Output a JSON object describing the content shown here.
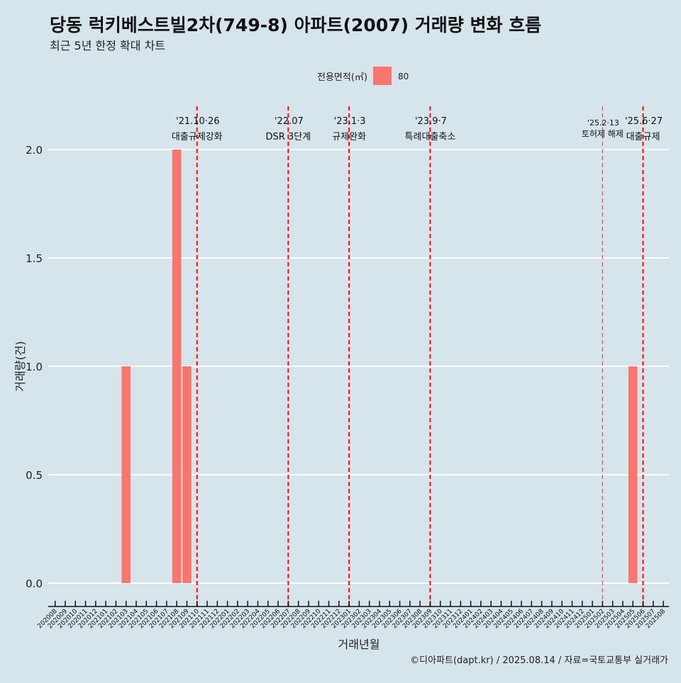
{
  "chart_data": {
    "type": "bar",
    "title": "당동 럭키베스트빌2차(749-8) 아파트(2007) 거래량 변화 흐름",
    "subtitle": "최근 5년 한정 확대 차트",
    "xlabel": "거래년월",
    "ylabel": "거래량(건)",
    "ylim": [
      0,
      2.0
    ],
    "yticks": [
      "0.0",
      "0.5",
      "1.0",
      "1.5",
      "2.0"
    ],
    "ytick_values": [
      0,
      0.5,
      1.0,
      1.5,
      2.0
    ],
    "legend": {
      "title": "전용면적(㎡)",
      "entries": [
        "80"
      ],
      "colors": [
        "#f8766d"
      ],
      "placement": "top"
    },
    "categories": [
      "202008",
      "202009",
      "202010",
      "202011",
      "202012",
      "202101",
      "202102",
      "202103",
      "202104",
      "202105",
      "202106",
      "202107",
      "202108",
      "202109",
      "202110",
      "202111",
      "202112",
      "202201",
      "202202",
      "202203",
      "202204",
      "202205",
      "202206",
      "202207",
      "202208",
      "202209",
      "202210",
      "202211",
      "202212",
      "202301",
      "202302",
      "202303",
      "202304",
      "202305",
      "202306",
      "202307",
      "202308",
      "202309",
      "202310",
      "202311",
      "202312",
      "202401",
      "202402",
      "202403",
      "202404",
      "202405",
      "202406",
      "202407",
      "202408",
      "202409",
      "202410",
      "202411",
      "202412",
      "202501",
      "202502",
      "202503",
      "202504",
      "202505",
      "202506",
      "202507",
      "202508"
    ],
    "series": [
      {
        "name": "80",
        "bars": [
          {
            "month": "202103",
            "value": 1
          },
          {
            "month": "202108",
            "value": 2
          },
          {
            "month": "202109",
            "value": 1
          },
          {
            "month": "202505",
            "value": 1
          }
        ]
      }
    ],
    "annotations": [
      {
        "month": "202110",
        "date": "'21.10·26",
        "label": "대출규제강화",
        "style": "major"
      },
      {
        "month": "202207",
        "date": "'22.07",
        "label": "DSR 3단계",
        "style": "major"
      },
      {
        "month": "202301",
        "date": "'23.1·3",
        "label": "규제완화",
        "style": "major"
      },
      {
        "month": "202309",
        "date": "'23.9·7",
        "label": "특례대출축소",
        "style": "major"
      },
      {
        "month": "202502",
        "date": "'25.2·13",
        "label": "토허제 해제",
        "style": "minor"
      },
      {
        "month": "202506",
        "date": "'25.6·27",
        "label": "대출규제",
        "style": "major"
      }
    ],
    "bar_color": "#f8766d",
    "line_color": "#ff0000",
    "caption": "©디아파트(dapt.kr) / 2025.08.14 / 자료=국토교통부 실거래가"
  }
}
